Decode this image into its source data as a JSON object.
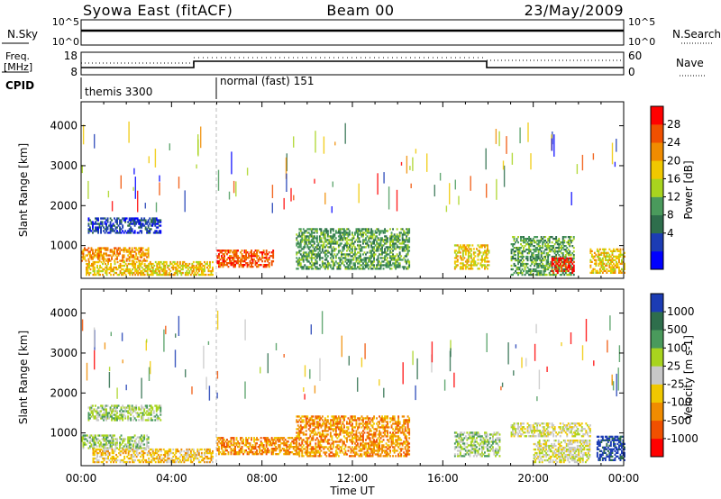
{
  "header": {
    "station": "Syowa East (fitACF)",
    "beam": "Beam 00",
    "date": "23/May/2009"
  },
  "nsky_panel": {
    "left_label": "N.Sky",
    "right_label": "N.Search",
    "left_ticks": [
      "10^5",
      "10^0"
    ],
    "right_ticks": [
      "10^5",
      "10^0"
    ],
    "right_legend_style": "dotted"
  },
  "freq_panel": {
    "left_label_1": "Freq.",
    "left_label_2": "[MHz]",
    "right_label": "Nave",
    "left_ticks": [
      "18",
      "8"
    ],
    "right_ticks": [
      "60",
      "0"
    ],
    "right_legend_style": "dotted"
  },
  "cpid_panel": {
    "label": "CPID",
    "modes": [
      {
        "name": "themis 3300",
        "start_hour": 0
      },
      {
        "name": "normal (fast) 151",
        "start_hour": 6
      }
    ]
  },
  "chart_data": [
    {
      "type": "heatmap",
      "name": "Power",
      "ylabel": "Slant Range [km]",
      "xlabel": "",
      "colorbar_label": "Power [dB]",
      "colorbar_ticks": [
        "28",
        "24",
        "20",
        "16",
        "12",
        "8",
        "4"
      ],
      "colors": [
        "#0000ff",
        "#1c3cb4",
        "#2e6e4c",
        "#4a9a5c",
        "#a8d41e",
        "#f0c800",
        "#f08c00",
        "#f05000",
        "#ff0000"
      ],
      "ylim": [
        180,
        4600
      ],
      "yticks": [
        1000,
        2000,
        3000,
        4000
      ],
      "xlim": [
        0,
        24
      ],
      "regions": [
        {
          "t0": 0.3,
          "t1": 3.5,
          "r0": 1300,
          "r1": 1700,
          "level": 1
        },
        {
          "t0": 0.0,
          "t1": 3.0,
          "r0": 600,
          "r1": 950,
          "level": 6
        },
        {
          "t0": 0.2,
          "t1": 5.8,
          "r0": 250,
          "r1": 600,
          "level": 5
        },
        {
          "t0": 6.0,
          "t1": 8.5,
          "r0": 450,
          "r1": 900,
          "level": 7
        },
        {
          "t0": 9.5,
          "t1": 14.5,
          "r0": 400,
          "r1": 1400,
          "level": 3
        },
        {
          "t0": 16.5,
          "t1": 18.0,
          "r0": 400,
          "r1": 1000,
          "level": 5
        },
        {
          "t0": 19.0,
          "t1": 21.8,
          "r0": 250,
          "r1": 1200,
          "level": 3
        },
        {
          "t0": 20.8,
          "t1": 21.8,
          "r0": 300,
          "r1": 700,
          "level": 8
        },
        {
          "t0": 22.5,
          "t1": 24.0,
          "r0": 300,
          "r1": 900,
          "level": 5
        }
      ]
    },
    {
      "type": "heatmap",
      "name": "Velocity",
      "ylabel": "Slant Range [km]",
      "xlabel": "Time UT",
      "colorbar_label": "Velocity [m s-1]",
      "colorbar_ticks": [
        "1000",
        "500",
        "100",
        "25",
        "-25",
        "-100",
        "-500",
        "-1000"
      ],
      "colors": [
        "#ff0000",
        "#f05000",
        "#f08c00",
        "#f0c800",
        "#c8c8c8",
        "#a8d41e",
        "#4a9a5c",
        "#2e6e4c",
        "#1c3cb4"
      ],
      "ylim": [
        180,
        4600
      ],
      "yticks": [
        1000,
        2000,
        3000,
        4000
      ],
      "xlim": [
        0,
        24
      ],
      "xtick_labels": [
        "00:00",
        "04:00",
        "08:00",
        "12:00",
        "16:00",
        "20:00",
        "00:00"
      ],
      "regions": [
        {
          "t0": 0.3,
          "t1": 3.5,
          "r0": 1300,
          "r1": 1700,
          "level": 5
        },
        {
          "t0": 0.0,
          "t1": 3.0,
          "r0": 600,
          "r1": 950,
          "level": 5
        },
        {
          "t0": 0.5,
          "t1": 5.8,
          "r0": 250,
          "r1": 600,
          "level": 3
        },
        {
          "t0": 6.0,
          "t1": 9.5,
          "r0": 450,
          "r1": 900,
          "level": 2
        },
        {
          "t0": 9.5,
          "t1": 14.5,
          "r0": 400,
          "r1": 1400,
          "level": 2
        },
        {
          "t0": 16.5,
          "t1": 18.5,
          "r0": 400,
          "r1": 1000,
          "level": 5
        },
        {
          "t0": 19.0,
          "t1": 22.5,
          "r0": 900,
          "r1": 1250,
          "level": 4
        },
        {
          "t0": 20.0,
          "t1": 22.5,
          "r0": 250,
          "r1": 800,
          "level": 4
        },
        {
          "t0": 22.8,
          "t1": 24.0,
          "r0": 300,
          "r1": 900,
          "level": 8
        }
      ]
    }
  ]
}
